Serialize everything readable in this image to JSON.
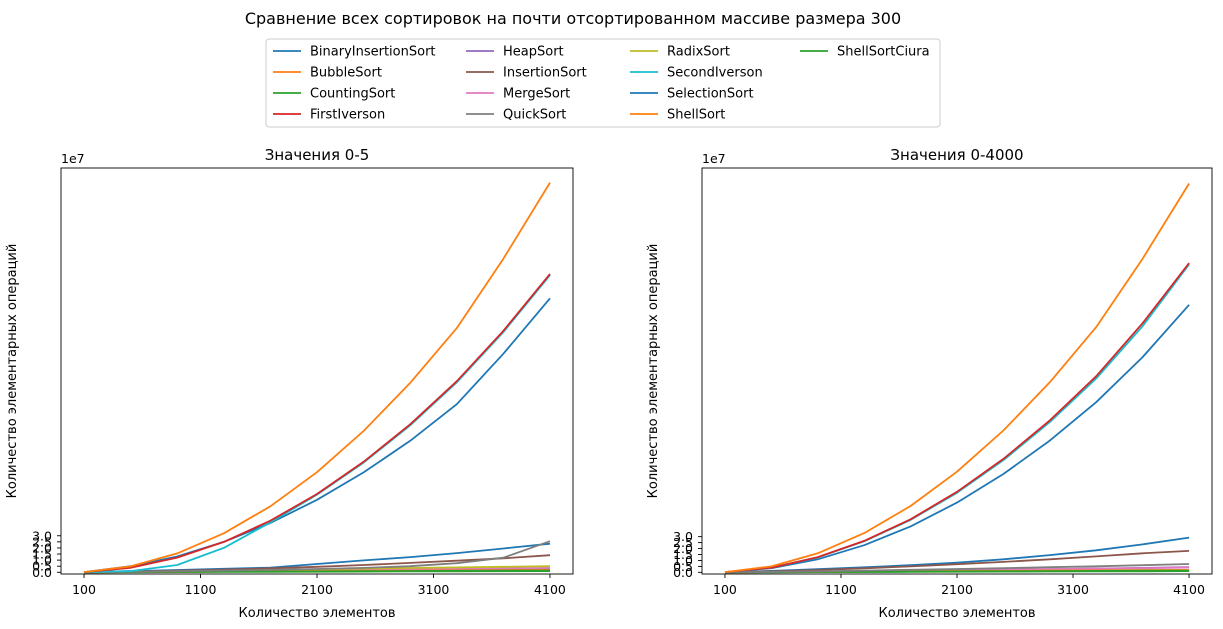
{
  "suptitle": "Сравнение всех сортировок на почти отсортированном массиве размера 300",
  "legend": [
    {
      "name": "BinaryInsertionSort",
      "color": "#1f77b4"
    },
    {
      "name": "BubbleSort",
      "color": "#ff7f0e"
    },
    {
      "name": "CountingSort",
      "color": "#2ca02c"
    },
    {
      "name": "FirstIverson",
      "color": "#d62728"
    },
    {
      "name": "HeapSort",
      "color": "#9467bd"
    },
    {
      "name": "InsertionSort",
      "color": "#8c564b"
    },
    {
      "name": "MergeSort",
      "color": "#e377c2"
    },
    {
      "name": "QuickSort",
      "color": "#7f7f7f"
    },
    {
      "name": "RadixSort",
      "color": "#bcbd22"
    },
    {
      "name": "SecondIverson",
      "color": "#17becf"
    },
    {
      "name": "SelectionSort",
      "color": "#1f77b4"
    },
    {
      "name": "ShellSort",
      "color": "#ff7f0e"
    },
    {
      "name": "ShellSortCiura",
      "color": "#2ca02c"
    }
  ],
  "chart_data": [
    {
      "type": "line",
      "title": "Значения 0-5",
      "xlabel": "Количество элементов",
      "ylabel": "Количество элементарных операций",
      "offset_label": "1e7",
      "xlim": [
        100,
        4100
      ],
      "ylim": [
        -0.14,
        33.2
      ],
      "xticks": [
        100,
        1100,
        2100,
        3100,
        4100
      ],
      "yticks": [
        0.0,
        0.5,
        1.0,
        1.5,
        2.0,
        2.5,
        3.0
      ],
      "ytick_labels": [
        "0.0",
        "0.5",
        "1.0",
        "1.5",
        "2.0",
        "2.5",
        "3.0"
      ],
      "x": [
        100,
        500,
        900,
        1300,
        1700,
        2100,
        2500,
        2900,
        3300,
        3700,
        4100
      ],
      "series": [
        {
          "name": "BinaryInsertionSort",
          "values": [
            0.01,
            0.1,
            0.19,
            0.29,
            0.38,
            0.68,
            0.98,
            1.25,
            1.58,
            1.95,
            2.35
          ]
        },
        {
          "name": "BubbleSort",
          "values": [
            0.02,
            0.48,
            1.55,
            3.2,
            5.42,
            8.22,
            11.6,
            15.55,
            20.05,
            25.75,
            32.0
          ]
        },
        {
          "name": "CountingSort",
          "values": [
            0.0,
            0.01,
            0.02,
            0.03,
            0.04,
            0.05,
            0.06,
            0.07,
            0.08,
            0.09,
            0.1
          ]
        },
        {
          "name": "FirstIverson",
          "values": [
            0.02,
            0.37,
            1.21,
            2.5,
            4.24,
            6.43,
            9.07,
            12.15,
            15.69,
            19.83,
            24.5
          ]
        },
        {
          "name": "HeapSort",
          "values": [
            0.01,
            0.03,
            0.06,
            0.09,
            0.12,
            0.15,
            0.18,
            0.21,
            0.25,
            0.29,
            0.33
          ]
        },
        {
          "name": "InsertionSort",
          "values": [
            0.0,
            0.05,
            0.13,
            0.22,
            0.33,
            0.45,
            0.6,
            0.77,
            0.95,
            1.15,
            1.4
          ]
        },
        {
          "name": "MergeSort",
          "values": [
            0.0,
            0.03,
            0.07,
            0.1,
            0.14,
            0.17,
            0.21,
            0.24,
            0.28,
            0.32,
            0.36
          ]
        },
        {
          "name": "QuickSort",
          "values": [
            0.0,
            0.04,
            0.09,
            0.14,
            0.2,
            0.27,
            0.36,
            0.5,
            0.75,
            1.2,
            2.55
          ]
        },
        {
          "name": "RadixSort",
          "values": [
            0.0,
            0.05,
            0.1,
            0.15,
            0.2,
            0.25,
            0.3,
            0.35,
            0.4,
            0.45,
            0.5
          ]
        },
        {
          "name": "SecondIverson",
          "values": [
            0.01,
            0.1,
            0.6,
            2.0,
            4.1,
            6.38,
            9.01,
            12.07,
            15.6,
            19.73,
            24.4
          ]
        },
        {
          "name": "SelectionSort",
          "values": [
            0.02,
            0.5,
            1.3,
            2.5,
            4.05,
            5.95,
            8.2,
            10.8,
            13.8,
            17.95,
            22.5
          ]
        },
        {
          "name": "ShellSort",
          "values": [
            0.0,
            0.02,
            0.04,
            0.06,
            0.08,
            0.1,
            0.12,
            0.14,
            0.16,
            0.18,
            0.2
          ]
        },
        {
          "name": "ShellSortCiura",
          "values": [
            0.0,
            0.015,
            0.03,
            0.045,
            0.06,
            0.075,
            0.09,
            0.105,
            0.12,
            0.135,
            0.15
          ]
        }
      ]
    },
    {
      "type": "line",
      "title": "Значения 0-4000",
      "xlabel": "Количество элементов",
      "ylabel": "Количество элементарных операций",
      "offset_label": "1e7",
      "xlim": [
        100,
        4100
      ],
      "ylim": [
        -0.14,
        34.0
      ],
      "xticks": [
        100,
        1100,
        2100,
        3100,
        4100
      ],
      "yticks": [
        0.0,
        0.5,
        1.0,
        1.5,
        2.0,
        2.5,
        3.0
      ],
      "ytick_labels": [
        "0.0",
        "0.5",
        "1.0",
        "1.5",
        "2.0",
        "2.5",
        "3.0"
      ],
      "x": [
        100,
        500,
        900,
        1300,
        1700,
        2100,
        2500,
        2900,
        3300,
        3700,
        4100
      ],
      "series": [
        {
          "name": "BinaryInsertionSort",
          "values": [
            0.01,
            0.12,
            0.26,
            0.42,
            0.6,
            0.82,
            1.1,
            1.45,
            1.85,
            2.35,
            2.92
          ]
        },
        {
          "name": "BubbleSort",
          "values": [
            0.02,
            0.5,
            1.6,
            3.3,
            5.58,
            8.46,
            11.93,
            15.98,
            20.62,
            26.37,
            32.7
          ]
        },
        {
          "name": "CountingSort",
          "values": [
            0.0,
            0.01,
            0.02,
            0.03,
            0.04,
            0.05,
            0.06,
            0.07,
            0.08,
            0.09,
            0.1
          ]
        },
        {
          "name": "FirstIverson",
          "values": [
            0.02,
            0.39,
            1.28,
            2.64,
            4.46,
            6.77,
            9.54,
            12.78,
            16.49,
            20.95,
            26.0
          ]
        },
        {
          "name": "HeapSort",
          "values": [
            0.01,
            0.03,
            0.06,
            0.1,
            0.14,
            0.18,
            0.22,
            0.27,
            0.32,
            0.37,
            0.43
          ]
        },
        {
          "name": "InsertionSort",
          "values": [
            0.0,
            0.08,
            0.2,
            0.34,
            0.5,
            0.68,
            0.88,
            1.1,
            1.34,
            1.6,
            1.8
          ]
        },
        {
          "name": "MergeSort",
          "values": [
            0.0,
            0.03,
            0.07,
            0.11,
            0.15,
            0.19,
            0.23,
            0.27,
            0.31,
            0.35,
            0.4
          ]
        },
        {
          "name": "QuickSort",
          "values": [
            0.0,
            0.04,
            0.09,
            0.15,
            0.21,
            0.28,
            0.35,
            0.43,
            0.51,
            0.6,
            0.7
          ]
        },
        {
          "name": "RadixSort",
          "values": [
            0.0,
            0.02,
            0.04,
            0.06,
            0.08,
            0.1,
            0.12,
            0.14,
            0.16,
            0.18,
            0.2
          ]
        },
        {
          "name": "SecondIverson",
          "values": [
            0.02,
            0.38,
            1.26,
            2.61,
            4.41,
            6.69,
            9.43,
            12.63,
            16.3,
            20.7,
            25.9
          ]
        },
        {
          "name": "SelectionSort",
          "values": [
            0.02,
            0.35,
            1.1,
            2.28,
            3.86,
            5.86,
            8.27,
            11.08,
            14.31,
            18.1,
            22.5
          ]
        },
        {
          "name": "ShellSort",
          "values": [
            0.0,
            0.02,
            0.04,
            0.06,
            0.08,
            0.1,
            0.12,
            0.14,
            0.16,
            0.18,
            0.2
          ]
        },
        {
          "name": "ShellSortCiura",
          "values": [
            0.0,
            0.015,
            0.03,
            0.045,
            0.06,
            0.075,
            0.09,
            0.105,
            0.12,
            0.135,
            0.15
          ]
        }
      ]
    }
  ]
}
